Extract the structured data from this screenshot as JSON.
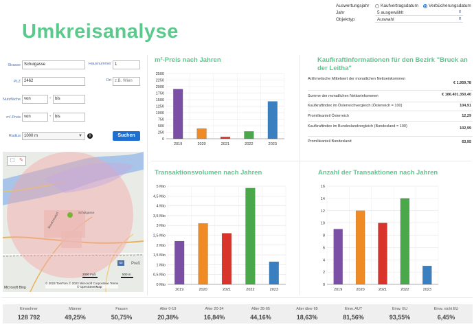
{
  "title": "Umkreisanalyse",
  "filter": {
    "auswertungsjahr_label": "Auswertungsjahr",
    "option_kaufvertragsdatum": "Kaufvertragsdatum",
    "option_verbuecherungsdatum": "Verbücherungsdatum",
    "jahr_label": "Jahr",
    "jahr_value": "5 ausgewählt",
    "objekttyp_label": "Objekttyp",
    "objekttyp_value": "Auswahl",
    "selected_option": "Verbücherungsdatum"
  },
  "form": {
    "strasse_label": "Strasse",
    "strasse_value": "Schulgasse",
    "hausnummer_label": "Hausnummer",
    "hausnummer_value": "1",
    "plz_label": "PLZ",
    "plz_value": "2462",
    "ort_label": "Ort",
    "ort_placeholder": "z.B. Wien",
    "nutzflaeche_label": "Nutzfläche",
    "nutzflaeche_von": "von",
    "nutzflaeche_bis": "bis",
    "preis_label": "m²-Preis",
    "preis_von": "von",
    "preis_bis": "bis",
    "dash": "-",
    "radius_label": "Radius",
    "radius_value": "1000 m",
    "search_label": "Suchen"
  },
  "map": {
    "attribution": "© 2023 TomTom  © 2023 Microsoft Corporation  Terms",
    "attribution2": "© OpenStreetMap",
    "brand": "Microsoft Bing",
    "scale_left": "2000 Fuß",
    "scale_right": "500 m",
    "badge": "50",
    "place": "Preß",
    "street1": "Schulgasse",
    "street2": "Bruckneudorf",
    "colors": {
      "circle": "#f3a6a6",
      "water": "#a8c4e8",
      "highlight": "#c6a9e0"
    }
  },
  "sections": {
    "m2_preis": "m²-Preis nach Jahren",
    "kaufkraft": "Kaufkraftinformationen für den Bezirk \"Bruck an der Leitha\"",
    "transaktionsvolumen": "Transaktionsvolumen nach Jahren",
    "anzahl": "Anzahl der Transaktionen nach Jahren"
  },
  "kaufkraft": [
    {
      "label": "Arithmetische Mittelwert der monatlichen Nettoeinkommen",
      "value": "€ 1.959,78"
    },
    {
      "label": "Summe der monatlichen Nettoeinkommen",
      "value": "€ 186.401.350,40"
    },
    {
      "label": "Kaufkraftindex im Österreichvergleich (Österreich = 100)",
      "value": "104,91"
    },
    {
      "label": "Promilleanteil Österreich",
      "value": "12,29"
    },
    {
      "label": "Kaufkraftindex im Bundeslandvergleich (Bundesland = 100)",
      "value": "102,99"
    },
    {
      "label": "Promilleanteil Bundesland",
      "value": "63,95"
    }
  ],
  "chart_data": [
    {
      "type": "bar",
      "title": "m²-Preis nach Jahren",
      "categories": [
        "2019",
        "2020",
        "2021",
        "2022",
        "2023"
      ],
      "values": [
        1900,
        390,
        70,
        280,
        1430
      ],
      "yticks": [
        "0",
        "250",
        "500",
        "750",
        "1000",
        "1250",
        "1500",
        "1750",
        "2000",
        "2250",
        "2500"
      ],
      "ylim": [
        0,
        2500
      ],
      "grid": true,
      "colors": [
        "#7b4fa6",
        "#f08a24",
        "#d9342b",
        "#4aa84a",
        "#3a7fc0"
      ]
    },
    {
      "type": "bar",
      "title": "Transaktionsvolumen nach Jahren",
      "categories": [
        "2019",
        "2020",
        "2021",
        "2022",
        "2023"
      ],
      "values": [
        2.2,
        3.1,
        2.6,
        4.9,
        1.15
      ],
      "yticks": [
        "0 Mio",
        "0,5 Mio",
        "1 Mio",
        "1,5 Mio",
        "2 Mio",
        "2,5 Mio",
        "3 Mio",
        "3,5 Mio",
        "4 Mio",
        "4,5 Mio",
        "5 Mio"
      ],
      "ylim": [
        0,
        5
      ],
      "grid": true,
      "colors": [
        "#7b4fa6",
        "#f08a24",
        "#d9342b",
        "#4aa84a",
        "#3a7fc0"
      ]
    },
    {
      "type": "bar",
      "title": "Anzahl der Transaktionen nach Jahren",
      "categories": [
        "2019",
        "2020",
        "2021",
        "2022",
        "2023"
      ],
      "values": [
        9,
        12,
        10,
        14,
        3
      ],
      "yticks": [
        "0",
        "2",
        "4",
        "6",
        "8",
        "10",
        "12",
        "14",
        "16"
      ],
      "ylim": [
        0,
        16
      ],
      "grid": true,
      "colors": [
        "#7b4fa6",
        "#f08a24",
        "#d9342b",
        "#4aa84a",
        "#3a7fc0"
      ]
    }
  ],
  "stats": [
    {
      "label": "Einwohner",
      "value": "128 792"
    },
    {
      "label": "Männer",
      "value": "49,25%"
    },
    {
      "label": "Frauen",
      "value": "50,75%"
    },
    {
      "label": "Alter 0-19",
      "value": "20,38%"
    },
    {
      "label": "Alter 20-34",
      "value": "16,84%"
    },
    {
      "label": "Alter 35-65",
      "value": "44,16%"
    },
    {
      "label": "Alter über 65",
      "value": "18,63%"
    },
    {
      "label": "Einw. AUT",
      "value": "81,56%"
    },
    {
      "label": "Einw. EU",
      "value": "93,55%"
    },
    {
      "label": "Einw. nicht EU",
      "value": "6,45%"
    }
  ]
}
